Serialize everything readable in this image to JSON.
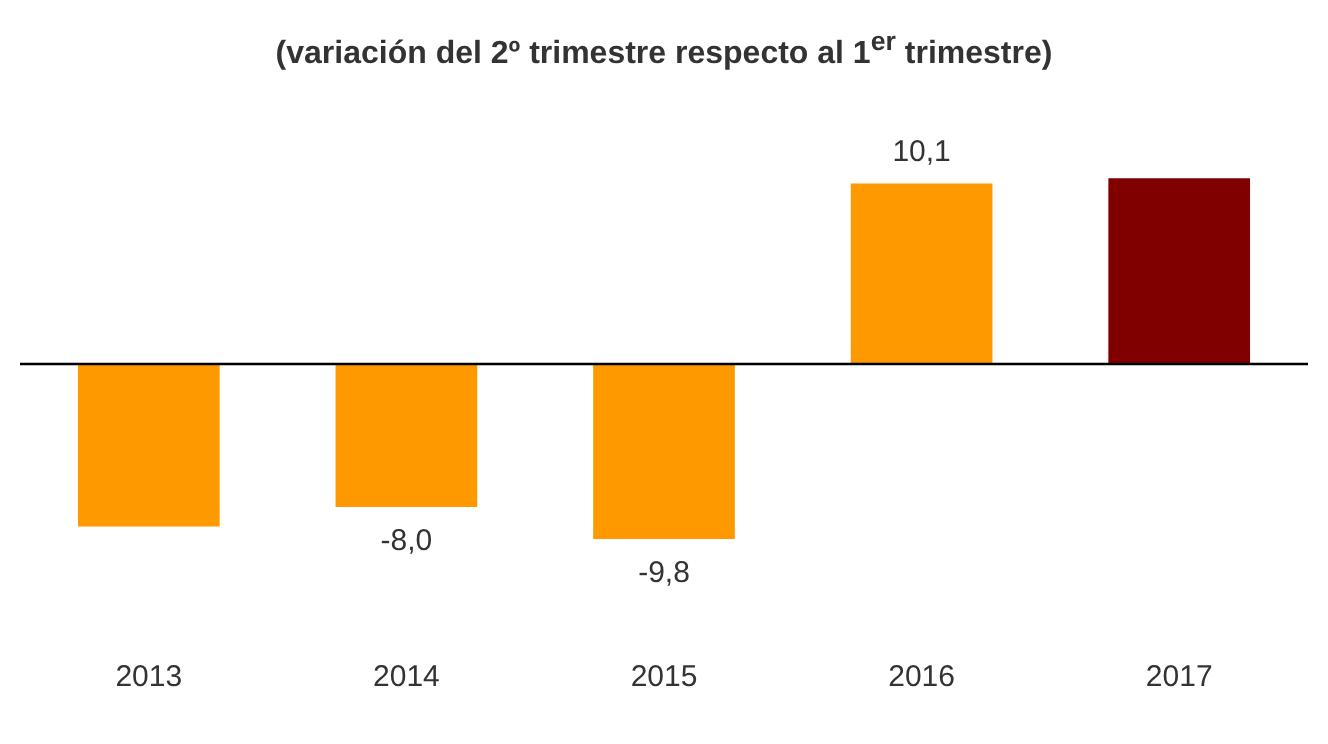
{
  "chart_data": {
    "type": "bar",
    "subtitle": "(variación del 2º trimestre respecto al 1$^{er}$ trimestre)",
    "categories": [
      "2013",
      "2014",
      "2015",
      "2016",
      "2017"
    ],
    "values": [
      -9.1,
      -8.0,
      -9.8,
      10.1,
      10.4
    ],
    "value_labels": [
      null,
      "-8,0",
      "-9,8",
      "10,1",
      null
    ],
    "colors": [
      "#ff9900",
      "#ff9900",
      "#ff9900",
      "#ff9900",
      "#800000"
    ]
  }
}
